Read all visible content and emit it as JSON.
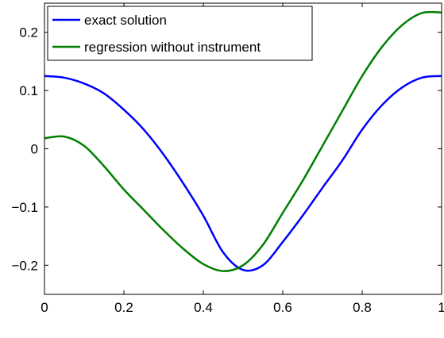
{
  "chart_data": {
    "type": "line",
    "title": "",
    "xlabel": "",
    "ylabel": "",
    "xlim": [
      0,
      1
    ],
    "ylim": [
      -0.25,
      0.25
    ],
    "xticks": [
      0,
      0.2,
      0.4,
      0.6,
      0.8,
      1
    ],
    "yticks": [
      -0.2,
      -0.1,
      0,
      0.1,
      0.2
    ],
    "xtick_labels": [
      "0",
      "0.2",
      "0.4",
      "0.6",
      "0.8",
      "1"
    ],
    "ytick_labels": [
      "−0.2",
      "−0.1",
      "0",
      "0.1",
      "0.2"
    ],
    "grid": false,
    "legend_position": "top-left",
    "series": [
      {
        "name": "exact solution",
        "color": "#0000ff",
        "x": [
          0,
          0.05,
          0.1,
          0.15,
          0.2,
          0.25,
          0.3,
          0.35,
          0.4,
          0.45,
          0.5,
          0.55,
          0.6,
          0.65,
          0.7,
          0.75,
          0.8,
          0.85,
          0.9,
          0.95,
          1
        ],
        "y": [
          0.125,
          0.122,
          0.112,
          0.095,
          0.067,
          0.033,
          -0.01,
          -0.06,
          -0.115,
          -0.178,
          -0.208,
          -0.2,
          -0.16,
          -0.115,
          -0.067,
          -0.02,
          0.033,
          0.075,
          0.105,
          0.122,
          0.125
        ]
      },
      {
        "name": "regression without instrument",
        "color": "#007f00",
        "x": [
          0,
          0.05,
          0.1,
          0.15,
          0.2,
          0.25,
          0.3,
          0.35,
          0.4,
          0.45,
          0.5,
          0.55,
          0.6,
          0.65,
          0.7,
          0.75,
          0.8,
          0.85,
          0.9,
          0.95,
          1
        ],
        "y": [
          0.018,
          0.021,
          0.005,
          -0.03,
          -0.07,
          -0.105,
          -0.14,
          -0.172,
          -0.198,
          -0.21,
          -0.2,
          -0.165,
          -0.11,
          -0.055,
          0.005,
          0.065,
          0.125,
          0.175,
          0.212,
          0.233,
          0.234
        ]
      }
    ]
  }
}
